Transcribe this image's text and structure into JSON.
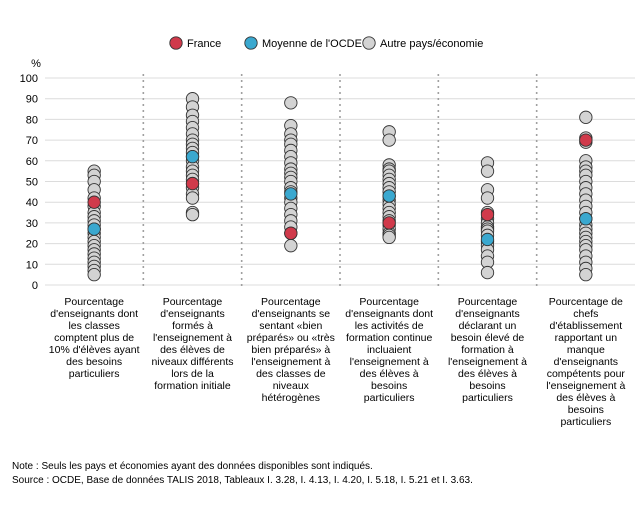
{
  "chart_data": {
    "type": "scatter",
    "title": "",
    "ylabel": "%",
    "xlabel": "",
    "ylim": [
      0,
      100
    ],
    "yticks": [
      0,
      10,
      20,
      30,
      40,
      50,
      60,
      70,
      80,
      90,
      100
    ],
    "grid": "horizontal",
    "legend_position": "top-center",
    "legend": [
      {
        "label": "France",
        "color": "#d03a4b"
      },
      {
        "label": "Moyenne de l'OCDE",
        "color": "#3aa8cf"
      },
      {
        "label": "Autre pays/économie",
        "color": "#d3d3d3"
      }
    ],
    "categories": [
      "Pourcentage d'enseignants dont les classes comptent plus de 10% d'élèves ayant des besoins particuliers",
      "Pourcentage d'enseignants formés à l'enseignement à des élèves de niveaux différents lors de la formation initiale",
      "Pourcentage d'enseignants se sentant «bien préparés» ou «très bien préparés» à l'enseignement à des classes de niveaux hétérogènes",
      "Pourcentage d'enseignants dont les activités de formation continue incluaient l'enseignement à des élèves à besoins particuliers",
      "Pourcentage d'enseignants déclarant un besoin élevé de formation à l'enseignement à des élèves à besoins particuliers",
      "Pourcentage de chefs d'établissement rapportant un manque d'enseignants compétents pour l'enseignement à des élèves à besoins particuliers"
    ],
    "series": [
      {
        "name": "Autre pays/économie",
        "values": [
          [
            55,
            53,
            50,
            46,
            42,
            38,
            35,
            33,
            31,
            29,
            27,
            25,
            23,
            21,
            19,
            17,
            15,
            13,
            11,
            9,
            7,
            5
          ],
          [
            90,
            86,
            82,
            79,
            76,
            73,
            70,
            68,
            66,
            64,
            62,
            60,
            57,
            55,
            53,
            51,
            49,
            47,
            44,
            42,
            35,
            34
          ],
          [
            88,
            77,
            73,
            70,
            68,
            65,
            62,
            59,
            56,
            54,
            52,
            50,
            47,
            45,
            42,
            40,
            37,
            34,
            31,
            28,
            25,
            19
          ],
          [
            74,
            70,
            58,
            56,
            55,
            53,
            51,
            49,
            47,
            45,
            43,
            41,
            39,
            37,
            35,
            33,
            31,
            29,
            27,
            25,
            24,
            23
          ],
          [
            59,
            55,
            46,
            42,
            35,
            32,
            30,
            28,
            27,
            26,
            24,
            21,
            19,
            17,
            14,
            11,
            6
          ],
          [
            81,
            71,
            69,
            60,
            57,
            55,
            53,
            50,
            47,
            44,
            41,
            38,
            35,
            32,
            29,
            27,
            25,
            23,
            21,
            19,
            17,
            14,
            11,
            8,
            5
          ]
        ]
      },
      {
        "name": "Moyenne de l'OCDE",
        "values": [
          27,
          62,
          44,
          43,
          22,
          32
        ]
      },
      {
        "name": "France",
        "values": [
          40,
          49,
          25,
          30,
          34,
          70
        ]
      }
    ]
  },
  "notes": {
    "note": "Note : Seuls les pays et économies ayant des données disponibles sont indiqués.",
    "source": "Source : OCDE, Base de données TALIS 2018, Tableaux I. 3.28, I. 4.13, I. 4.20, I. 5.18, I. 5.21 et I. 3.63."
  }
}
